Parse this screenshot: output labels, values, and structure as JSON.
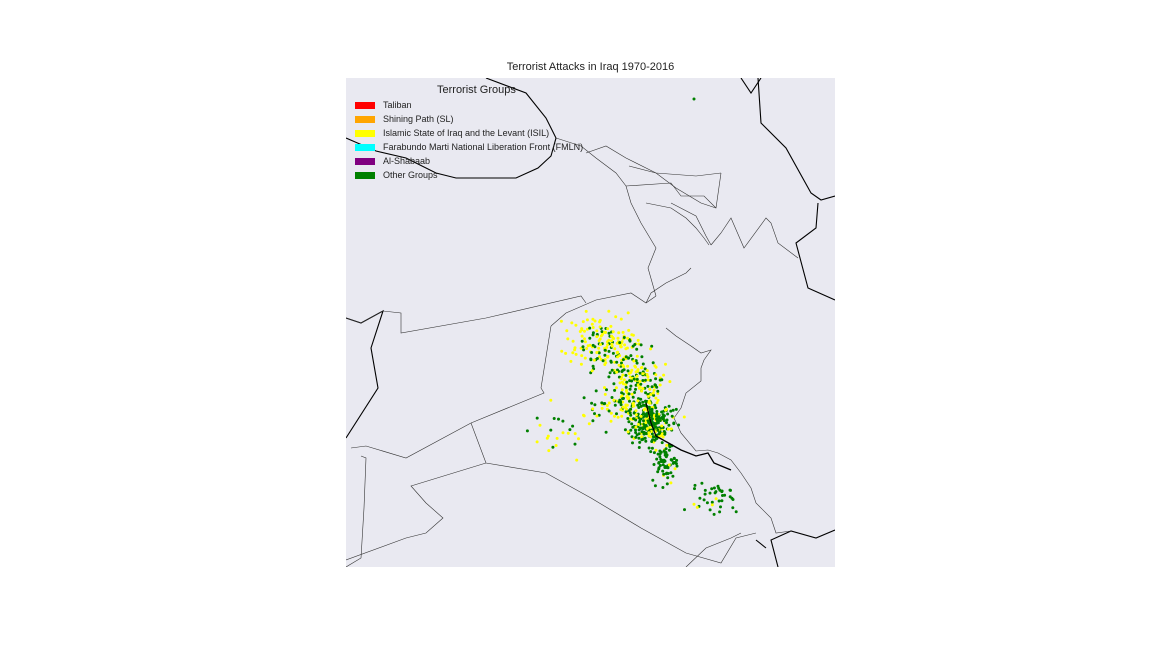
{
  "title": "Terrorist Attacks in Iraq 1970-2016",
  "legend": {
    "title": "Terrorist Groups",
    "items": [
      {
        "label": "Taliban",
        "color": "#ff0000"
      },
      {
        "label": "Shining Path (SL)",
        "color": "#ffa500"
      },
      {
        "label": "Islamic State of Iraq and the Levant (ISIL)",
        "color": "#ffff00"
      },
      {
        "label": "Farabundo Marti National Liberation Front (FMLN)",
        "color": "#00ffff"
      },
      {
        "label": "Al-Shabaab",
        "color": "#800080"
      },
      {
        "label": "Other Groups",
        "color": "#008000"
      }
    ]
  },
  "colors": {
    "background": "#e9e9f1",
    "border": "#333333",
    "coast": "#000000"
  }
}
